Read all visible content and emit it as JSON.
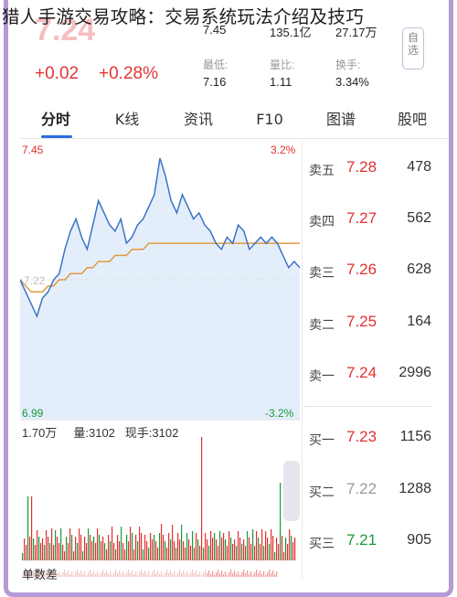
{
  "article": {
    "title": "猎人手游交易攻略：交易系统玩法介绍及技巧"
  },
  "quote": {
    "price": "7.24",
    "change": "+0.02",
    "change_pct": "+0.28%",
    "stats": [
      {
        "label": "",
        "value": "7.45"
      },
      {
        "label": "",
        "value": "135.1亿"
      },
      {
        "label": "",
        "value": "27.17万"
      },
      {
        "label": "最低:",
        "value": "7.16"
      },
      {
        "label": "量比:",
        "value": "1.11"
      },
      {
        "label": "换手:",
        "value": "3.34%"
      }
    ],
    "self_select_label": "自选"
  },
  "tabs": [
    "分时",
    "K线",
    "资讯",
    "F10",
    "图谱",
    "股吧"
  ],
  "active_tab": "分时",
  "chart": {
    "y_max": "7.45",
    "y_min": "6.99",
    "pct_max": "3.2%",
    "pct_min": "-3.2%",
    "prev_close_label": "7.22",
    "volume_max_label": "1.70万",
    "volume_label": "量:3102",
    "current_hand_label": "现手:3102",
    "diff_label": "单数差",
    "colors": {
      "price_line": "#3b74c6",
      "avg_line": "#e09a3c",
      "up": "#e23030",
      "down": "#1a9a3a",
      "fill": "#e4eefb"
    }
  },
  "chart_data": {
    "type": "line",
    "ylim": [
      6.99,
      7.45
    ],
    "series": [],
    "price": [
      7.22,
      7.2,
      7.18,
      7.16,
      7.19,
      7.2,
      7.22,
      7.23,
      7.27,
      7.3,
      7.32,
      7.29,
      7.27,
      7.31,
      7.35,
      7.33,
      7.31,
      7.3,
      7.32,
      7.28,
      7.29,
      7.31,
      7.32,
      7.34,
      7.36,
      7.42,
      7.39,
      7.35,
      7.33,
      7.36,
      7.34,
      7.32,
      7.33,
      7.31,
      7.3,
      7.28,
      7.27,
      7.29,
      7.28,
      7.31,
      7.3,
      7.27,
      7.28,
      7.29,
      7.28,
      7.29,
      7.28,
      7.26,
      7.24,
      7.25,
      7.24
    ],
    "avg": [
      7.22,
      7.21,
      7.2,
      7.2,
      7.2,
      7.21,
      7.21,
      7.22,
      7.22,
      7.23,
      7.23,
      7.23,
      7.24,
      7.24,
      7.25,
      7.25,
      7.25,
      7.26,
      7.26,
      7.26,
      7.27,
      7.27,
      7.27,
      7.28,
      7.28,
      7.28,
      7.28,
      7.28,
      7.28,
      7.28,
      7.28,
      7.28,
      7.28,
      7.28,
      7.28,
      7.28,
      7.28,
      7.28,
      7.28,
      7.28,
      7.28,
      7.28,
      7.28,
      7.28,
      7.28,
      7.28,
      7.28,
      7.28,
      7.28,
      7.28,
      7.28
    ]
  },
  "order_book": {
    "asks": [
      {
        "label": "卖五",
        "price": "7.28",
        "vol": "478",
        "color": "red"
      },
      {
        "label": "卖四",
        "price": "7.27",
        "vol": "562",
        "color": "red"
      },
      {
        "label": "卖三",
        "price": "7.26",
        "vol": "628",
        "color": "red"
      },
      {
        "label": "卖二",
        "price": "7.25",
        "vol": "164",
        "color": "red"
      },
      {
        "label": "卖一",
        "price": "7.24",
        "vol": "2996",
        "color": "red"
      }
    ],
    "bids": [
      {
        "label": "买一",
        "price": "7.23",
        "vol": "1156",
        "color": "red"
      },
      {
        "label": "买二",
        "price": "7.22",
        "vol": "1288",
        "color": "gray"
      },
      {
        "label": "买三",
        "price": "7.21",
        "vol": "905",
        "color": "green"
      }
    ]
  }
}
